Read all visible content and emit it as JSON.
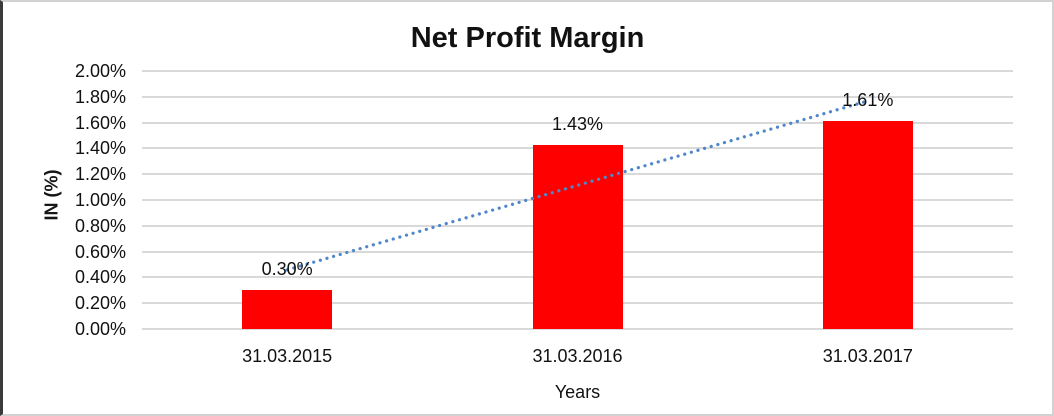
{
  "window": {
    "background": "#ffffff",
    "border_left_color": "#3b3b3b",
    "border_frame_color": "#d2d2d2"
  },
  "chart_data": {
    "type": "bar",
    "title": "Net Profit Margin",
    "xlabel": "Years",
    "ylabel": "IN (%)",
    "categories": [
      "31.03.2015",
      "31.03.2016",
      "31.03.2017"
    ],
    "values": [
      0.3,
      1.43,
      1.61
    ],
    "data_labels": [
      "0.30%",
      "1.43%",
      "1.61%"
    ],
    "ylim": [
      0,
      2
    ],
    "ytick_step": 0.2,
    "ytick_labels": [
      "0.00%",
      "0.20%",
      "0.40%",
      "0.60%",
      "0.80%",
      "1.00%",
      "1.20%",
      "1.40%",
      "1.60%",
      "1.80%",
      "2.00%"
    ],
    "grid": true,
    "gridline_color": "#d9d9d9",
    "bar_color": "#ff0000",
    "legend": "none",
    "trendline": {
      "type": "linear",
      "style": "dotted",
      "color": "#4f87c9"
    }
  }
}
